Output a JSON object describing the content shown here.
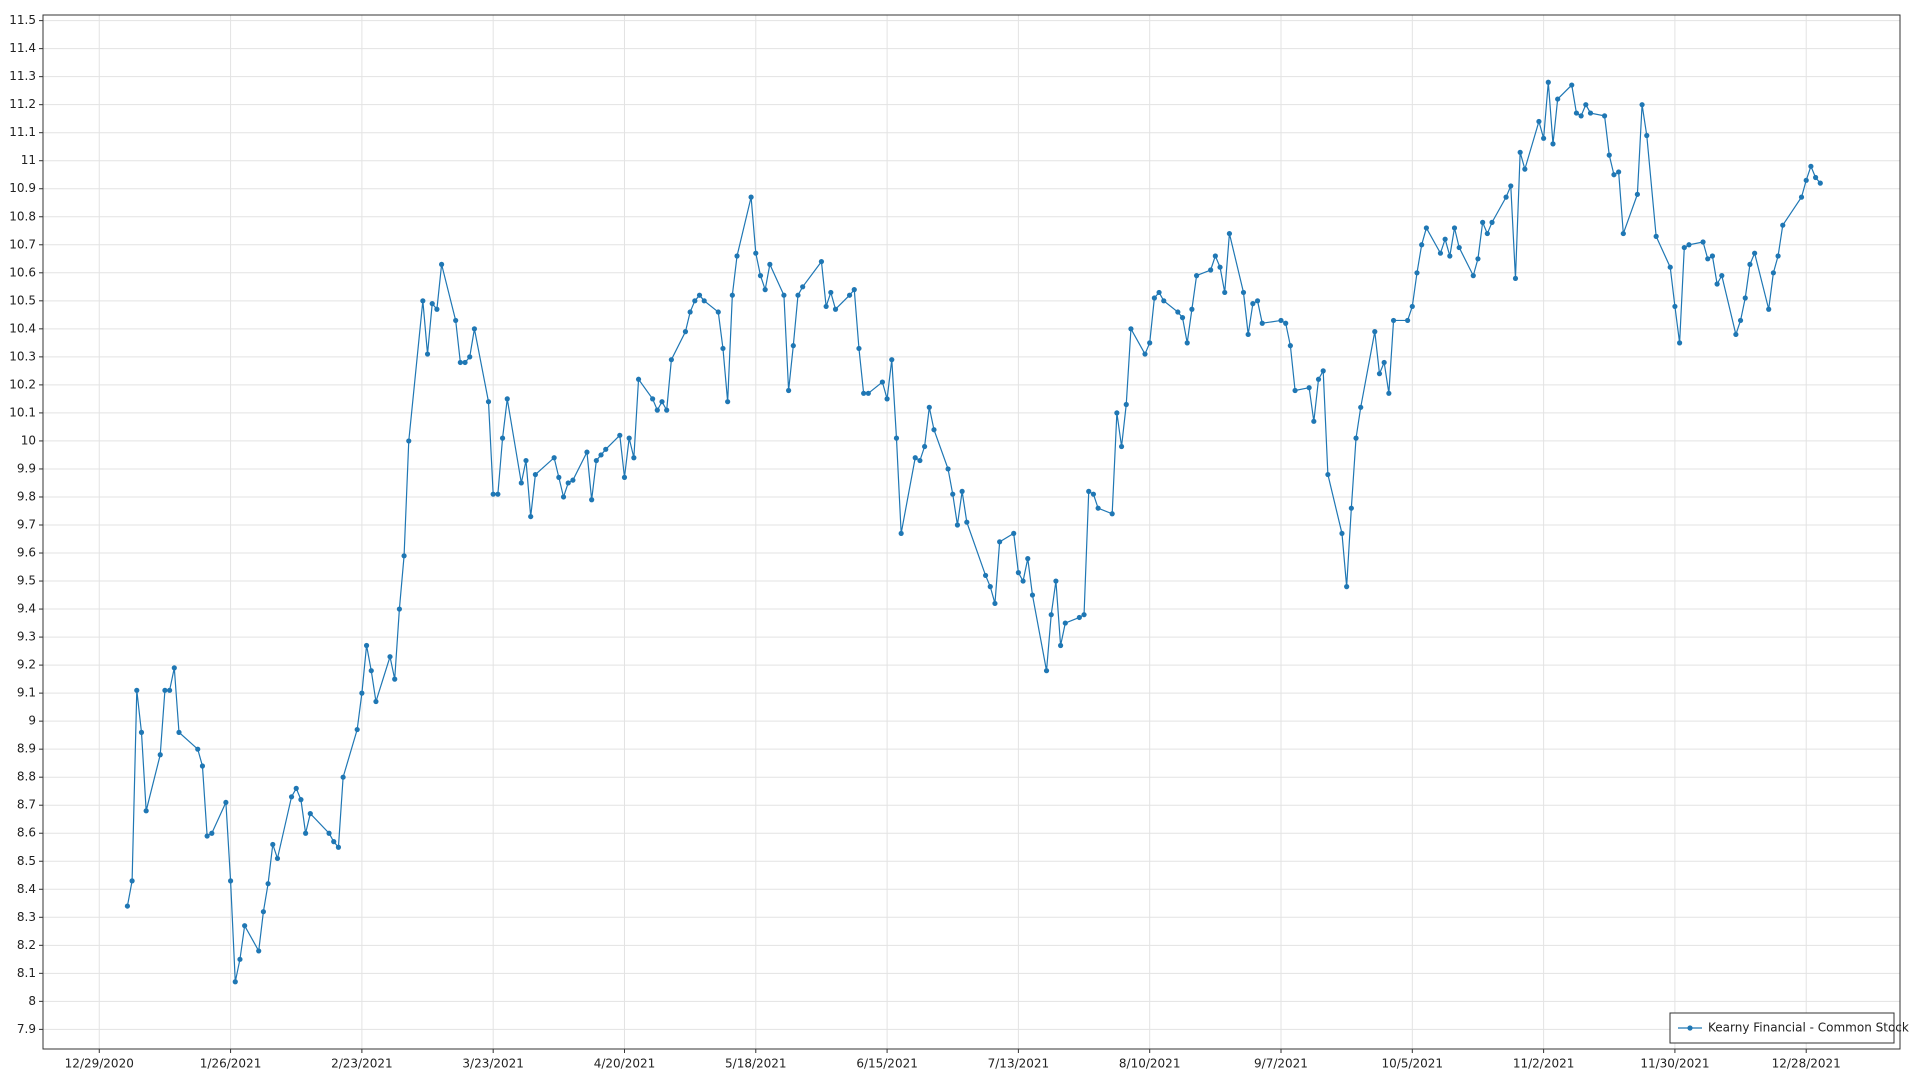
{
  "chart_data": {
    "type": "line",
    "x": [
      "1/4/2021",
      "1/5/2021",
      "1/6/2021",
      "1/7/2021",
      "1/8/2021",
      "1/11/2021",
      "1/12/2021",
      "1/13/2021",
      "1/14/2021",
      "1/15/2021",
      "1/19/2021",
      "1/20/2021",
      "1/21/2021",
      "1/22/2021",
      "1/25/2021",
      "1/26/2021",
      "1/27/2021",
      "1/28/2021",
      "1/29/2021",
      "2/1/2021",
      "2/2/2021",
      "2/3/2021",
      "2/4/2021",
      "2/5/2021",
      "2/8/2021",
      "2/9/2021",
      "2/10/2021",
      "2/11/2021",
      "2/12/2021",
      "2/16/2021",
      "2/17/2021",
      "2/18/2021",
      "2/19/2021",
      "2/22/2021",
      "2/23/2021",
      "2/24/2021",
      "2/25/2021",
      "2/26/2021",
      "3/1/2021",
      "3/2/2021",
      "3/3/2021",
      "3/4/2021",
      "3/5/2021",
      "3/8/2021",
      "3/9/2021",
      "3/10/2021",
      "3/11/2021",
      "3/12/2021",
      "3/15/2021",
      "3/16/2021",
      "3/17/2021",
      "3/18/2021",
      "3/19/2021",
      "3/22/2021",
      "3/23/2021",
      "3/24/2021",
      "3/25/2021",
      "3/26/2021",
      "3/29/2021",
      "3/30/2021",
      "3/31/2021",
      "4/1/2021",
      "4/5/2021",
      "4/6/2021",
      "4/7/2021",
      "4/8/2021",
      "4/9/2021",
      "4/12/2021",
      "4/13/2021",
      "4/14/2021",
      "4/15/2021",
      "4/16/2021",
      "4/19/2021",
      "4/20/2021",
      "4/21/2021",
      "4/22/2021",
      "4/23/2021",
      "4/26/2021",
      "4/27/2021",
      "4/28/2021",
      "4/29/2021",
      "4/30/2021",
      "5/3/2021",
      "5/4/2021",
      "5/5/2021",
      "5/6/2021",
      "5/7/2021",
      "5/10/2021",
      "5/11/2021",
      "5/12/2021",
      "5/13/2021",
      "5/14/2021",
      "5/17/2021",
      "5/18/2021",
      "5/19/2021",
      "5/20/2021",
      "5/21/2021",
      "5/24/2021",
      "5/25/2021",
      "5/26/2021",
      "5/27/2021",
      "5/28/2021",
      "6/1/2021",
      "6/2/2021",
      "6/3/2021",
      "6/4/2021",
      "6/7/2021",
      "6/8/2021",
      "6/9/2021",
      "6/10/2021",
      "6/11/2021",
      "6/14/2021",
      "6/15/2021",
      "6/16/2021",
      "6/17/2021",
      "6/18/2021",
      "6/21/2021",
      "6/22/2021",
      "6/23/2021",
      "6/24/2021",
      "6/25/2021",
      "6/28/2021",
      "6/29/2021",
      "6/30/2021",
      "7/1/2021",
      "7/2/2021",
      "7/6/2021",
      "7/7/2021",
      "7/8/2021",
      "7/9/2021",
      "7/12/2021",
      "7/13/2021",
      "7/14/2021",
      "7/15/2021",
      "7/16/2021",
      "7/19/2021",
      "7/20/2021",
      "7/21/2021",
      "7/22/2021",
      "7/23/2021",
      "7/26/2021",
      "7/27/2021",
      "7/28/2021",
      "7/29/2021",
      "7/30/2021",
      "8/2/2021",
      "8/3/2021",
      "8/4/2021",
      "8/5/2021",
      "8/6/2021",
      "8/9/2021",
      "8/10/2021",
      "8/11/2021",
      "8/12/2021",
      "8/13/2021",
      "8/16/2021",
      "8/17/2021",
      "8/18/2021",
      "8/19/2021",
      "8/20/2021",
      "8/23/2021",
      "8/24/2021",
      "8/25/2021",
      "8/26/2021",
      "8/27/2021",
      "8/30/2021",
      "8/31/2021",
      "9/1/2021",
      "9/2/2021",
      "9/3/2021",
      "9/7/2021",
      "9/8/2021",
      "9/9/2021",
      "9/10/2021",
      "9/13/2021",
      "9/14/2021",
      "9/15/2021",
      "9/16/2021",
      "9/17/2021",
      "9/20/2021",
      "9/21/2021",
      "9/22/2021",
      "9/23/2021",
      "9/24/2021",
      "9/27/2021",
      "9/28/2021",
      "9/29/2021",
      "9/30/2021",
      "10/1/2021",
      "10/4/2021",
      "10/5/2021",
      "10/6/2021",
      "10/7/2021",
      "10/8/2021",
      "10/11/2021",
      "10/12/2021",
      "10/13/2021",
      "10/14/2021",
      "10/15/2021",
      "10/18/2021",
      "10/19/2021",
      "10/20/2021",
      "10/21/2021",
      "10/22/2021",
      "10/25/2021",
      "10/26/2021",
      "10/27/2021",
      "10/28/2021",
      "10/29/2021",
      "11/1/2021",
      "11/2/2021",
      "11/3/2021",
      "11/4/2021",
      "11/5/2021",
      "11/8/2021",
      "11/9/2021",
      "11/10/2021",
      "11/11/2021",
      "11/12/2021",
      "11/15/2021",
      "11/16/2021",
      "11/17/2021",
      "11/18/2021",
      "11/19/2021",
      "11/22/2021",
      "11/23/2021",
      "11/24/2021",
      "11/26/2021",
      "11/29/2021",
      "11/30/2021",
      "12/1/2021",
      "12/2/2021",
      "12/3/2021",
      "12/6/2021",
      "12/7/2021",
      "12/8/2021",
      "12/9/2021",
      "12/10/2021",
      "12/13/2021",
      "12/14/2021",
      "12/15/2021",
      "12/16/2021",
      "12/17/2021",
      "12/20/2021",
      "12/21/2021",
      "12/22/2021",
      "12/23/2021",
      "12/27/2021",
      "12/28/2021",
      "12/29/2021",
      "12/30/2021",
      "12/31/2021"
    ],
    "series": [
      {
        "name": "Kearny Financial - Common Stock",
        "color": "#1f77b4",
        "values": [
          8.34,
          8.43,
          9.11,
          8.96,
          8.68,
          8.88,
          9.11,
          9.11,
          9.19,
          8.96,
          8.9,
          8.84,
          8.59,
          8.6,
          8.71,
          8.43,
          8.07,
          8.15,
          8.27,
          8.18,
          8.32,
          8.42,
          8.56,
          8.51,
          8.73,
          8.76,
          8.72,
          8.6,
          8.67,
          8.6,
          8.57,
          8.55,
          8.8,
          8.97,
          9.1,
          9.27,
          9.18,
          9.07,
          9.23,
          9.15,
          9.4,
          9.59,
          10.0,
          10.5,
          10.31,
          10.49,
          10.47,
          10.63,
          10.43,
          10.28,
          10.28,
          10.3,
          10.4,
          10.14,
          9.81,
          9.81,
          10.01,
          10.15,
          9.85,
          9.93,
          9.73,
          9.88,
          9.94,
          9.87,
          9.8,
          9.85,
          9.86,
          9.96,
          9.79,
          9.93,
          9.95,
          9.97,
          10.02,
          9.87,
          10.01,
          9.94,
          10.22,
          10.15,
          10.11,
          10.14,
          10.11,
          10.29,
          10.39,
          10.46,
          10.5,
          10.52,
          10.5,
          10.46,
          10.33,
          10.14,
          10.52,
          10.66,
          10.87,
          10.67,
          10.59,
          10.54,
          10.63,
          10.52,
          10.18,
          10.34,
          10.52,
          10.55,
          10.64,
          10.48,
          10.53,
          10.47,
          10.52,
          10.54,
          10.33,
          10.17,
          10.17,
          10.21,
          10.15,
          10.29,
          10.01,
          9.67,
          9.94,
          9.93,
          9.98,
          10.12,
          10.04,
          9.9,
          9.81,
          9.7,
          9.82,
          9.71,
          9.52,
          9.48,
          9.42,
          9.64,
          9.67,
          9.53,
          9.5,
          9.58,
          9.45,
          9.18,
          9.38,
          9.5,
          9.27,
          9.35,
          9.37,
          9.38,
          9.82,
          9.81,
          9.76,
          9.74,
          10.1,
          9.98,
          10.13,
          10.4,
          10.31,
          10.35,
          10.51,
          10.53,
          10.5,
          10.46,
          10.44,
          10.35,
          10.47,
          10.59,
          10.61,
          10.66,
          10.62,
          10.53,
          10.74,
          10.53,
          10.38,
          10.49,
          10.5,
          10.42,
          10.43,
          10.42,
          10.34,
          10.18,
          10.19,
          10.07,
          10.22,
          10.25,
          9.88,
          9.67,
          9.48,
          9.76,
          10.01,
          10.12,
          10.39,
          10.24,
          10.28,
          10.17,
          10.43,
          10.43,
          10.48,
          10.6,
          10.7,
          10.76,
          10.67,
          10.72,
          10.66,
          10.76,
          10.69,
          10.59,
          10.65,
          10.78,
          10.74,
          10.78,
          10.87,
          10.91,
          10.58,
          11.03,
          10.97,
          11.14,
          11.08,
          11.28,
          11.06,
          11.22,
          11.27,
          11.17,
          11.16,
          11.2,
          11.17,
          11.16,
          11.02,
          10.95,
          10.96,
          10.74,
          10.88,
          11.2,
          11.09,
          10.73,
          10.62,
          10.48,
          10.35,
          10.69,
          10.7,
          10.71,
          10.65,
          10.66,
          10.56,
          10.59,
          10.38,
          10.43,
          10.51,
          10.63,
          10.67,
          10.47,
          10.6,
          10.66,
          10.77,
          10.87,
          10.93,
          10.98,
          10.94,
          10.92
        ]
      }
    ],
    "xlim": [
      "12/17/2020",
      "1/17/2022"
    ],
    "xticks": [
      "12/29/2020",
      "1/26/2021",
      "2/23/2021",
      "3/23/2021",
      "4/20/2021",
      "5/18/2021",
      "6/15/2021",
      "7/13/2021",
      "8/10/2021",
      "9/7/2021",
      "10/5/2021",
      "11/2/2021",
      "11/30/2021",
      "12/28/2021"
    ],
    "ylim": [
      7.83,
      11.52
    ],
    "yticks": [
      7.9,
      8,
      8.1,
      8.2,
      8.3,
      8.4,
      8.5,
      8.6,
      8.7,
      8.8,
      8.9,
      9,
      9.1,
      9.2,
      9.3,
      9.4,
      9.5,
      9.6,
      9.7,
      9.8,
      9.9,
      10,
      10.1,
      10.2,
      10.3,
      10.4,
      10.5,
      10.6,
      10.7,
      10.8,
      10.9,
      11,
      11.1,
      11.2,
      11.3,
      11.4,
      11.5
    ],
    "grid": true,
    "legend": "lower right"
  }
}
